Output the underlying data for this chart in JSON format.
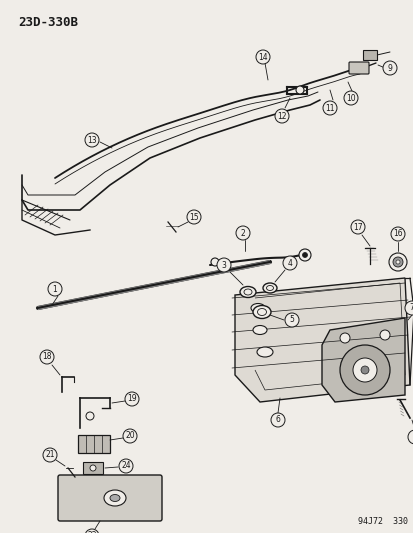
{
  "bg_color": "#f0ede8",
  "line_color": "#1a1a1a",
  "title": "23D-330B",
  "footer": "94J72  330",
  "figsize": [
    4.14,
    5.33
  ],
  "dpi": 100
}
